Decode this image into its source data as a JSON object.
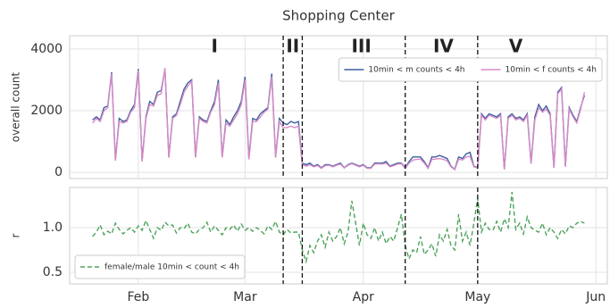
{
  "chart_data": [
    {
      "type": "line",
      "title": "Shopping Center",
      "ylabel": "overall count",
      "xlim": [
        13,
        154
      ],
      "xticks": [
        31,
        59,
        90,
        120,
        151
      ],
      "ylim": [
        -200,
        4430
      ],
      "yticks": [
        0,
        2000,
        4000
      ],
      "grid": true,
      "legend": "upper right",
      "legend_ncol": 2,
      "vlines": [
        69,
        74,
        101,
        120
      ],
      "annotations": [
        {
          "label": "I",
          "x": 51
        },
        {
          "label": "II",
          "x": 71.5
        },
        {
          "label": "III",
          "x": 89.5
        },
        {
          "label": "IV",
          "x": 111
        },
        {
          "label": "V",
          "x": 130
        }
      ],
      "x": [
        19,
        20,
        21,
        22,
        23,
        24,
        25,
        26,
        27,
        28,
        29,
        30,
        31,
        32,
        33,
        34,
        35,
        36,
        37,
        38,
        39,
        40,
        41,
        42,
        43,
        44,
        45,
        46,
        47,
        48,
        49,
        50,
        51,
        52,
        53,
        54,
        55,
        56,
        57,
        58,
        59,
        60,
        61,
        62,
        63,
        64,
        65,
        66,
        67,
        68,
        69,
        70,
        71,
        72,
        73,
        74,
        75,
        76,
        77,
        78,
        79,
        80,
        81,
        82,
        83,
        84,
        85,
        86,
        87,
        88,
        89,
        90,
        91,
        92,
        93,
        94,
        95,
        96,
        97,
        98,
        99,
        100,
        101,
        102,
        103,
        104,
        105,
        106,
        107,
        108,
        109,
        110,
        111,
        112,
        113,
        114,
        115,
        116,
        117,
        118,
        119,
        120,
        121,
        122,
        123,
        124,
        125,
        126,
        127,
        128,
        129,
        130,
        131,
        132,
        133,
        134,
        135,
        136,
        137,
        138,
        139,
        140,
        141,
        142,
        143,
        144,
        145,
        146,
        147,
        148
      ],
      "series": [
        {
          "name": "10min < m counts < 4h",
          "color": "#3f5f9f",
          "linestyle": "solid",
          "values": [
            1700,
            1800,
            1700,
            2100,
            2150,
            3250,
            400,
            1750,
            1650,
            1700,
            2000,
            2200,
            3350,
            380,
            1800,
            2300,
            2200,
            2600,
            2650,
            3350,
            500,
            1800,
            1900,
            2300,
            2700,
            2900,
            3000,
            500,
            1800,
            1700,
            1650,
            2000,
            2300,
            3000,
            500,
            1700,
            1550,
            1800,
            2000,
            2300,
            3100,
            450,
            1750,
            1700,
            1900,
            2000,
            2100,
            3200,
            500,
            1750,
            1600,
            1550,
            1650,
            1600,
            1650,
            300,
            250,
            300,
            200,
            250,
            150,
            250,
            250,
            200,
            250,
            300,
            150,
            250,
            300,
            250,
            200,
            250,
            150,
            150,
            300,
            300,
            300,
            350,
            200,
            250,
            300,
            300,
            150,
            350,
            500,
            500,
            500,
            350,
            150,
            500,
            500,
            550,
            500,
            450,
            200,
            100,
            500,
            450,
            600,
            650,
            200,
            150,
            1900,
            1750,
            1900,
            1850,
            1800,
            1900,
            100,
            1800,
            1900,
            1750,
            1800,
            1700,
            1900,
            300,
            1800,
            2200,
            2000,
            2150,
            1900,
            150,
            2600,
            2750,
            200,
            2100,
            1850,
            1650,
            2100,
            2500
          ]
        },
        {
          "name": "10min < f counts < 4h",
          "color": "#d78bc6",
          "linestyle": "solid",
          "values": [
            1600,
            1750,
            1650,
            2000,
            2100,
            3200,
            380,
            1650,
            1600,
            1650,
            1950,
            2100,
            3300,
            350,
            1750,
            2200,
            2150,
            2500,
            2550,
            3380,
            480,
            1750,
            1850,
            2200,
            2600,
            2800,
            2950,
            480,
            1750,
            1650,
            1600,
            1950,
            2200,
            2900,
            480,
            1600,
            1500,
            1700,
            1900,
            2200,
            3000,
            420,
            1650,
            1650,
            1800,
            1950,
            2050,
            3100,
            480,
            1650,
            1450,
            1450,
            1500,
            1450,
            1500,
            250,
            200,
            250,
            180,
            220,
            130,
            220,
            230,
            180,
            230,
            270,
            140,
            230,
            280,
            230,
            180,
            230,
            130,
            130,
            270,
            280,
            270,
            300,
            180,
            220,
            270,
            280,
            130,
            300,
            400,
            420,
            430,
            300,
            130,
            420,
            430,
            450,
            420,
            380,
            180,
            90,
            430,
            400,
            500,
            520,
            180,
            140,
            1850,
            1700,
            1850,
            1800,
            1750,
            1850,
            90,
            1750,
            1850,
            1700,
            1750,
            1650,
            1850,
            280,
            1700,
            2100,
            1950,
            2050,
            1850,
            140,
            2550,
            2700,
            180,
            2050,
            1800,
            1600,
            2050,
            2600
          ]
        }
      ]
    },
    {
      "type": "line",
      "ylabel": "r",
      "xlim": [
        13,
        154
      ],
      "xticks": [
        {
          "value": 31,
          "label": "Feb"
        },
        {
          "value": 59,
          "label": "Mar"
        },
        {
          "value": 90,
          "label": "Apr"
        },
        {
          "value": 120,
          "label": "May"
        },
        {
          "value": 151,
          "label": "Jun"
        }
      ],
      "ylim": [
        0.37,
        1.45
      ],
      "yticks": [
        0.5,
        {
          "value": 1,
          "label": "1.0"
        }
      ],
      "grid": true,
      "legend": "lower left",
      "legend_ncol": 1,
      "vlines": [
        69,
        74,
        101,
        120
      ],
      "x": [
        19,
        20,
        21,
        22,
        23,
        24,
        25,
        26,
        27,
        28,
        29,
        30,
        31,
        32,
        33,
        34,
        35,
        36,
        37,
        38,
        39,
        40,
        41,
        42,
        43,
        44,
        45,
        46,
        47,
        48,
        49,
        50,
        51,
        52,
        53,
        54,
        55,
        56,
        57,
        58,
        59,
        60,
        61,
        62,
        63,
        64,
        65,
        66,
        67,
        68,
        69,
        70,
        71,
        72,
        73,
        74,
        75,
        76,
        77,
        78,
        79,
        80,
        81,
        82,
        83,
        84,
        85,
        86,
        87,
        88,
        89,
        90,
        91,
        92,
        93,
        94,
        95,
        96,
        97,
        98,
        99,
        100,
        101,
        102,
        103,
        104,
        105,
        106,
        107,
        108,
        109,
        110,
        111,
        112,
        113,
        114,
        115,
        116,
        117,
        118,
        119,
        120,
        121,
        122,
        123,
        124,
        125,
        126,
        127,
        128,
        129,
        130,
        131,
        132,
        133,
        134,
        135,
        136,
        137,
        138,
        139,
        140,
        141,
        142,
        143,
        144,
        145,
        146,
        147,
        148
      ],
      "series": [
        {
          "name": "female/male 10min < count < 4h",
          "color": "#4ea35d",
          "linestyle": "dashed",
          "values": [
            0.9,
            0.95,
            1.03,
            0.92,
            0.96,
            0.93,
            1.05,
            0.98,
            0.93,
            0.97,
            1.0,
            0.95,
            1.02,
            0.97,
            1.08,
            0.98,
            0.88,
            1.0,
            0.97,
            1.06,
            1.02,
            1.03,
            0.94,
            1.0,
            0.99,
            1.05,
            0.95,
            0.93,
            0.98,
            1.0,
            1.06,
            0.95,
            1.02,
            0.97,
            0.92,
            1.0,
            0.98,
            1.03,
            0.96,
            1.04,
            0.97,
            1.0,
            0.96,
            1.0,
            0.97,
            0.93,
            1.02,
            0.98,
            1.07,
            0.95,
            0.92,
            0.98,
            0.94,
            0.95,
            0.95,
            0.75,
            0.62,
            0.8,
            0.72,
            0.85,
            0.92,
            0.78,
            0.95,
            0.85,
            0.9,
            1.0,
            0.82,
            0.95,
            1.3,
            1.05,
            0.8,
            1.05,
            0.92,
            0.88,
            1.0,
            0.85,
            0.95,
            0.82,
            0.9,
            0.85,
            1.0,
            1.15,
            0.8,
            0.65,
            0.75,
            0.72,
            0.9,
            0.7,
            0.75,
            0.82,
            0.68,
            0.92,
            0.85,
            0.98,
            0.8,
            0.75,
            1.15,
            0.85,
            0.95,
            0.8,
            1.05,
            1.33,
            0.95,
            1.05,
            0.98,
            0.97,
            1.07,
            0.95,
            1.1,
            1.0,
            1.4,
            0.98,
            1.05,
            0.93,
            1.12,
            1.0,
            0.97,
            0.95,
            1.05,
            0.92,
            1.0,
            0.95,
            0.88,
            0.98,
            0.93,
            1.02,
            1.0,
            1.05,
            1.07,
            1.05
          ]
        }
      ]
    }
  ]
}
